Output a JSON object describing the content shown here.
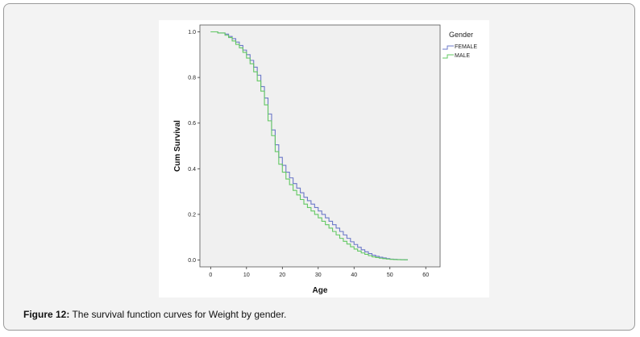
{
  "figure": {
    "label": "Figure 12:",
    "caption": " The survival function curves for Weight by gender."
  },
  "chart_data": {
    "type": "line",
    "step": true,
    "xlabel": "Age",
    "ylabel": "Cum Survival",
    "xlim": [
      -3,
      64
    ],
    "ylim": [
      -0.03,
      1.03
    ],
    "x_ticks": [
      0,
      10,
      20,
      30,
      40,
      50,
      60
    ],
    "y_ticks": [
      0.0,
      0.2,
      0.4,
      0.6,
      0.8,
      1.0
    ],
    "y_tick_labels": [
      "0.0",
      "0.2",
      "0.4",
      "0.6",
      "0.8",
      "1.0"
    ],
    "grid": false,
    "plot_background": "#f0f0f0",
    "legend": {
      "title": "Gender",
      "position": "right-top"
    },
    "series": [
      {
        "name": "FEMALE",
        "color": "#6b78c8",
        "x": [
          0,
          2,
          4,
          5,
          6,
          7,
          8,
          9,
          10,
          11,
          12,
          13,
          14,
          15,
          16,
          17,
          18,
          19,
          20,
          21,
          22,
          23,
          24,
          25,
          26,
          27,
          28,
          29,
          30,
          31,
          32,
          33,
          34,
          35,
          36,
          37,
          38,
          39,
          40,
          41,
          42,
          43,
          44,
          45,
          46,
          47,
          48,
          49,
          50,
          51,
          52,
          53,
          54,
          55
        ],
        "y": [
          1.0,
          0.995,
          0.99,
          0.98,
          0.97,
          0.955,
          0.94,
          0.92,
          0.9,
          0.875,
          0.845,
          0.81,
          0.76,
          0.71,
          0.64,
          0.57,
          0.505,
          0.45,
          0.415,
          0.385,
          0.36,
          0.335,
          0.315,
          0.295,
          0.275,
          0.26,
          0.245,
          0.23,
          0.215,
          0.2,
          0.185,
          0.17,
          0.155,
          0.14,
          0.125,
          0.11,
          0.095,
          0.08,
          0.068,
          0.056,
          0.045,
          0.036,
          0.028,
          0.021,
          0.016,
          0.012,
          0.009,
          0.006,
          0.004,
          0.003,
          0.002,
          0.0015,
          0.001,
          0.001
        ]
      },
      {
        "name": "MALE",
        "color": "#62c862",
        "x": [
          0,
          2,
          4,
          5,
          6,
          7,
          8,
          9,
          10,
          11,
          12,
          13,
          14,
          15,
          16,
          17,
          18,
          19,
          20,
          21,
          22,
          23,
          24,
          25,
          26,
          27,
          28,
          29,
          30,
          31,
          32,
          33,
          34,
          35,
          36,
          37,
          38,
          39,
          40,
          41,
          42,
          43,
          44,
          45,
          46,
          47,
          48,
          49,
          50,
          51,
          52,
          53,
          54,
          55
        ],
        "y": [
          1.0,
          0.995,
          0.985,
          0.975,
          0.96,
          0.945,
          0.93,
          0.91,
          0.885,
          0.86,
          0.825,
          0.785,
          0.74,
          0.68,
          0.61,
          0.545,
          0.475,
          0.42,
          0.385,
          0.355,
          0.33,
          0.305,
          0.285,
          0.265,
          0.245,
          0.23,
          0.215,
          0.2,
          0.185,
          0.17,
          0.155,
          0.14,
          0.125,
          0.11,
          0.095,
          0.082,
          0.07,
          0.058,
          0.048,
          0.039,
          0.031,
          0.025,
          0.019,
          0.014,
          0.011,
          0.008,
          0.006,
          0.004,
          0.003,
          0.002,
          0.0015,
          0.001,
          0.001,
          0.001
        ]
      }
    ]
  }
}
